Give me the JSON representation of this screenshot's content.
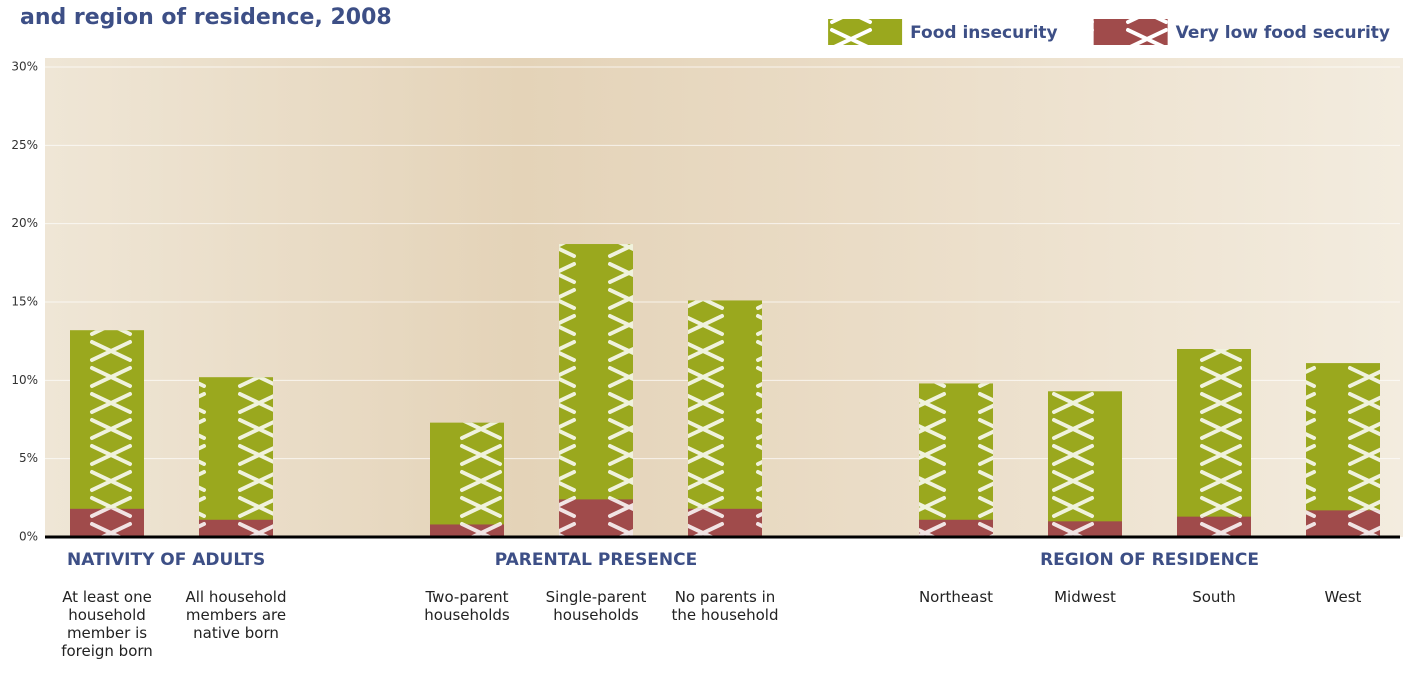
{
  "chart_data": {
    "type": "bar",
    "title": "and region of residence, 2008",
    "groups": [
      {
        "name": "NATIVITY OF ADULTS",
        "categories": [
          "At least one household member is foreign born",
          "All household members are native born"
        ]
      },
      {
        "name": "PARENTAL PRESENCE",
        "categories": [
          "Two-parent households",
          "Single-parent households",
          "No parents in the household"
        ]
      },
      {
        "name": "REGION OF RESIDENCE",
        "categories": [
          "Northeast",
          "Midwest",
          "South",
          "West"
        ]
      }
    ],
    "series": [
      {
        "name": "Food insecurity",
        "color": "#9aa81e",
        "values": [
          13.2,
          10.2,
          7.3,
          18.7,
          15.1,
          9.8,
          9.3,
          12.0,
          11.1
        ]
      },
      {
        "name": "Very low food security",
        "color": "#a04b4b",
        "values": [
          1.8,
          1.1,
          0.8,
          2.4,
          1.8,
          1.1,
          1.0,
          1.3,
          1.7
        ]
      }
    ],
    "ylim": [
      0,
      30
    ],
    "yticks": [
      {
        "value": 0,
        "label": "0%"
      },
      {
        "value": 5,
        "label": "5%"
      },
      {
        "value": 10,
        "label": "10%"
      },
      {
        "value": 15,
        "label": "15%"
      },
      {
        "value": 20,
        "label": "20%"
      },
      {
        "value": 25,
        "label": "25%"
      },
      {
        "value": 30,
        "label": "30%"
      }
    ],
    "grid": true,
    "legend": "top-right"
  }
}
